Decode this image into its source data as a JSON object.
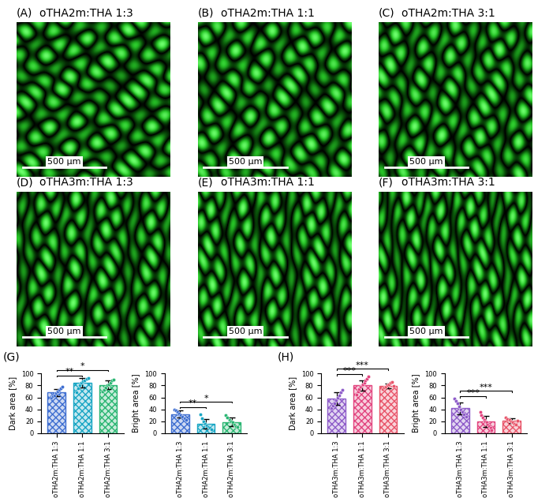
{
  "images": [
    {
      "label": "(A)",
      "title": "oTHA2m:THA 1:3"
    },
    {
      "label": "(B)",
      "title": "oTHA2m:THA 1:1"
    },
    {
      "label": "(C)",
      "title": "oTHA2m:THA 3:1"
    },
    {
      "label": "(D)",
      "title": "oTHA3m:THA 1:3"
    },
    {
      "label": "(E)",
      "title": "oTHA3m:THA 1:1"
    },
    {
      "label": "(F)",
      "title": "oTHA3m:THA 3:1"
    }
  ],
  "scale_bar": {
    "label": "500 µm"
  },
  "chart_panels": [
    {
      "label": "(G)"
    },
    {
      "label": "(H)"
    }
  ],
  "chart_data": [
    {
      "type": "bar",
      "ylabel": "Dark area [%]",
      "categories": [
        "oTHA2m:THA 1:3",
        "oTHA2m:THA 1:1",
        "oTHA2m:THA 3:1"
      ],
      "values": [
        68,
        84,
        81
      ],
      "errors": [
        6,
        8,
        7
      ],
      "points": [
        [
          60,
          62,
          64,
          67,
          70,
          72,
          75,
          78
        ],
        [
          68,
          75,
          80,
          84,
          87,
          89,
          91,
          93
        ],
        [
          70,
          73,
          77,
          80,
          82,
          85,
          88,
          90
        ]
      ],
      "colors": [
        "#3f6fd1",
        "#19a6c4",
        "#2bb673"
      ],
      "marker": "circle",
      "ylim": [
        0,
        100
      ],
      "yticks": [
        0,
        20,
        40,
        60,
        80,
        100
      ],
      "significance": [
        {
          "pair": [
            0,
            1
          ],
          "label": "**"
        },
        {
          "pair": [
            0,
            2
          ],
          "label": "*"
        }
      ]
    },
    {
      "type": "bar",
      "ylabel": "Bright area [%]",
      "categories": [
        "oTHA2m:THA 1:3",
        "oTHA2m:THA 1:1",
        "oTHA2m:THA 3:1"
      ],
      "values": [
        32,
        16,
        19
      ],
      "errors": [
        6,
        8,
        7
      ],
      "points": [
        [
          40,
          38,
          36,
          33,
          30,
          28,
          25,
          22
        ],
        [
          32,
          25,
          20,
          16,
          13,
          11,
          9,
          7
        ],
        [
          30,
          27,
          23,
          20,
          18,
          15,
          12,
          10
        ]
      ],
      "colors": [
        "#3f6fd1",
        "#19a6c4",
        "#2bb673"
      ],
      "marker": "circle",
      "ylim": [
        0,
        100
      ],
      "yticks": [
        0,
        20,
        40,
        60,
        80,
        100
      ],
      "significance": [
        {
          "pair": [
            0,
            1
          ],
          "label": "**"
        },
        {
          "pair": [
            0,
            2
          ],
          "label": "*"
        }
      ]
    },
    {
      "type": "bar",
      "ylabel": "Dark area [%]",
      "categories": [
        "oTHA3m:THA 1:3",
        "oTHA3m:THA 1:1",
        "oTHA3m:THA 3:1"
      ],
      "values": [
        58,
        80,
        79
      ],
      "errors": [
        10,
        9,
        4
      ],
      "points": [
        [
          42,
          46,
          50,
          55,
          60,
          64,
          68,
          72
        ],
        [
          65,
          70,
          74,
          78,
          80,
          82,
          85,
          88,
          91,
          95
        ],
        [
          74,
          76,
          78,
          80,
          82,
          84,
          86,
          79
        ]
      ],
      "colors": [
        "#8e5cc9",
        "#e2457f",
        "#e8556a"
      ],
      "marker": "circle",
      "ylim": [
        0,
        100
      ],
      "yticks": [
        0,
        20,
        40,
        60,
        80,
        100
      ],
      "significance": [
        {
          "pair": [
            0,
            1
          ],
          "label": "***"
        },
        {
          "pair": [
            0,
            2
          ],
          "label": "***"
        }
      ]
    },
    {
      "type": "bar",
      "ylabel": "Bright area [%]",
      "categories": [
        "oTHA3m:THA 1:3",
        "oTHA3m:THA 1:1",
        "oTHA3m:THA 3:1"
      ],
      "values": [
        42,
        20,
        21
      ],
      "errors": [
        10,
        9,
        4
      ],
      "points": [
        [
          58,
          54,
          50,
          45,
          40,
          36,
          32,
          28
        ],
        [
          35,
          30,
          26,
          22,
          20,
          18,
          15,
          12,
          9,
          5
        ],
        [
          26,
          24,
          22,
          20,
          18,
          16,
          14,
          21
        ]
      ],
      "colors": [
        "#8e5cc9",
        "#e2457f",
        "#e8556a"
      ],
      "marker": "circle",
      "ylim": [
        0,
        100
      ],
      "yticks": [
        0,
        20,
        40,
        60,
        80,
        100
      ],
      "significance": [
        {
          "pair": [
            0,
            1
          ],
          "label": "***"
        },
        {
          "pair": [
            0,
            2
          ],
          "label": "***"
        }
      ]
    }
  ]
}
